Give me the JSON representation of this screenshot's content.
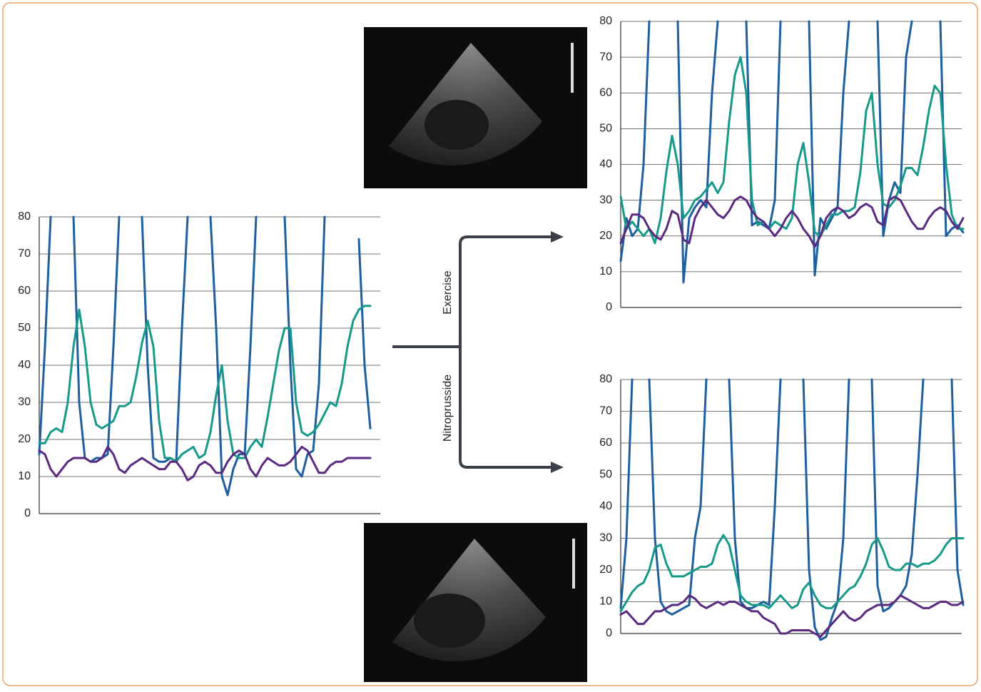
{
  "chart_data": [
    {
      "type": "line",
      "ylim": [
        0,
        80
      ],
      "yticks": [
        0,
        10,
        20,
        30,
        40,
        50,
        60,
        70,
        80
      ],
      "grid": true,
      "series": [
        {
          "color": "#1d5e9e",
          "values": [
            16,
            45,
            80,
            null,
            null,
            null,
            80,
            30,
            15,
            14,
            15,
            15,
            16,
            45,
            80,
            null,
            null,
            null,
            80,
            40,
            15,
            14,
            14,
            15,
            14,
            50,
            80,
            null,
            null,
            null,
            80,
            50,
            10,
            5,
            12,
            16,
            16,
            45,
            80,
            null,
            null,
            null,
            null,
            80,
            40,
            12,
            10,
            16,
            17,
            35,
            80,
            null,
            null,
            null,
            null,
            null,
            74,
            40,
            23
          ]
        },
        {
          "color": "#17998a",
          "values": [
            19,
            19,
            22,
            23,
            22,
            30,
            45,
            55,
            45,
            30,
            24,
            23,
            24,
            25,
            29,
            29,
            30,
            37,
            46,
            52,
            45,
            25,
            15,
            15,
            14,
            16,
            17,
            18,
            15,
            16,
            22,
            32,
            40,
            25,
            16,
            15,
            15,
            18,
            20,
            18,
            26,
            35,
            44,
            50,
            50,
            30,
            22,
            21,
            22,
            24,
            27,
            30,
            29,
            35,
            45,
            52,
            55,
            56,
            56
          ]
        },
        {
          "color": "#5a2a80",
          "values": [
            17,
            16,
            12,
            10,
            12,
            14,
            15,
            15,
            15,
            14,
            14,
            15,
            18,
            16,
            12,
            11,
            13,
            14,
            15,
            14,
            13,
            12,
            12,
            14,
            14,
            12,
            9,
            10,
            13,
            14,
            13,
            11,
            11,
            14,
            16,
            17,
            16,
            12,
            10,
            13,
            15,
            14,
            13,
            13,
            14,
            16,
            18,
            17,
            14,
            11,
            11,
            13,
            14,
            14,
            15,
            15,
            15,
            15,
            15
          ]
        }
      ]
    },
    {
      "type": "line",
      "ylim": [
        0,
        80
      ],
      "yticks": [
        0,
        10,
        20,
        30,
        40,
        50,
        60,
        70,
        80
      ],
      "grid": true,
      "series": [
        {
          "color": "#1d5e9e",
          "values": [
            13,
            25,
            20,
            22,
            40,
            80,
            null,
            null,
            null,
            null,
            80,
            7,
            25,
            28,
            30,
            28,
            60,
            80,
            null,
            null,
            null,
            null,
            80,
            23,
            24,
            23,
            22,
            30,
            80,
            null,
            null,
            null,
            null,
            80,
            9,
            25,
            22,
            25,
            28,
            60,
            80,
            null,
            null,
            null,
            null,
            80,
            20,
            30,
            35,
            32,
            70,
            80,
            null,
            null,
            null,
            null,
            80,
            20,
            22,
            23,
            21
          ]
        },
        {
          "color": "#17998a",
          "values": [
            31,
            22,
            24,
            22,
            20,
            22,
            18,
            25,
            38,
            48,
            40,
            25,
            27,
            30,
            31,
            33,
            35,
            32,
            35,
            52,
            65,
            70,
            60,
            30,
            23,
            24,
            22,
            24,
            23,
            22,
            25,
            40,
            46,
            35,
            21,
            20,
            23,
            26,
            26,
            27,
            27,
            28,
            38,
            55,
            60,
            40,
            29,
            28,
            30,
            34,
            39,
            39,
            37,
            45,
            55,
            62,
            60,
            40,
            26,
            22,
            22
          ]
        },
        {
          "color": "#5a2a80",
          "values": [
            18,
            22,
            26,
            26,
            25,
            22,
            20,
            19,
            22,
            27,
            26,
            19,
            18,
            25,
            28,
            30,
            28,
            26,
            25,
            27,
            30,
            31,
            30,
            27,
            25,
            24,
            22,
            20,
            22,
            25,
            27,
            25,
            22,
            20,
            17,
            20,
            25,
            27,
            28,
            27,
            25,
            26,
            28,
            29,
            28,
            24,
            23,
            30,
            31,
            30,
            27,
            24,
            22,
            22,
            25,
            27,
            28,
            27,
            24,
            22,
            25
          ]
        }
      ]
    },
    {
      "type": "line",
      "ylim": [
        0,
        80
      ],
      "yticks": [
        0,
        10,
        20,
        30,
        40,
        50,
        60,
        70,
        80
      ],
      "grid": true,
      "series": [
        {
          "color": "#1d5e9e",
          "values": [
            8,
            30,
            80,
            null,
            null,
            80,
            30,
            10,
            7,
            6,
            7,
            8,
            9,
            30,
            40,
            80,
            null,
            null,
            null,
            80,
            30,
            10,
            8,
            8,
            9,
            10,
            9,
            40,
            80,
            null,
            null,
            null,
            80,
            20,
            2,
            -2,
            -1,
            5,
            10,
            30,
            80,
            null,
            null,
            null,
            80,
            15,
            7,
            8,
            10,
            12,
            15,
            25,
            50,
            80,
            null,
            null,
            null,
            null,
            80,
            20,
            9
          ]
        },
        {
          "color": "#17998a",
          "values": [
            7,
            10,
            13,
            15,
            16,
            20,
            27,
            28,
            22,
            18,
            18,
            18,
            19,
            20,
            21,
            21,
            22,
            28,
            31,
            28,
            20,
            12,
            10,
            9,
            9,
            9,
            8,
            10,
            12,
            10,
            8,
            9,
            14,
            16,
            12,
            9,
            8,
            8,
            10,
            12,
            14,
            15,
            18,
            22,
            28,
            30,
            26,
            21,
            20,
            20,
            22,
            22,
            21,
            22,
            22,
            23,
            25,
            28,
            30,
            30,
            30
          ]
        },
        {
          "color": "#5a2a80",
          "values": [
            6,
            7,
            5,
            3,
            3,
            5,
            7,
            7,
            8,
            9,
            9,
            10,
            12,
            11,
            9,
            8,
            9,
            10,
            9,
            10,
            10,
            9,
            8,
            7,
            7,
            5,
            4,
            3,
            0,
            0,
            1,
            1,
            1,
            1,
            0,
            -1,
            1,
            3,
            5,
            7,
            5,
            4,
            5,
            7,
            8,
            9,
            9,
            9,
            10,
            12,
            11,
            10,
            9,
            8,
            8,
            9,
            10,
            10,
            9,
            9,
            10
          ]
        }
      ]
    }
  ],
  "diagram": {
    "branches": [
      "Exercise",
      "Nitroprusside"
    ]
  }
}
